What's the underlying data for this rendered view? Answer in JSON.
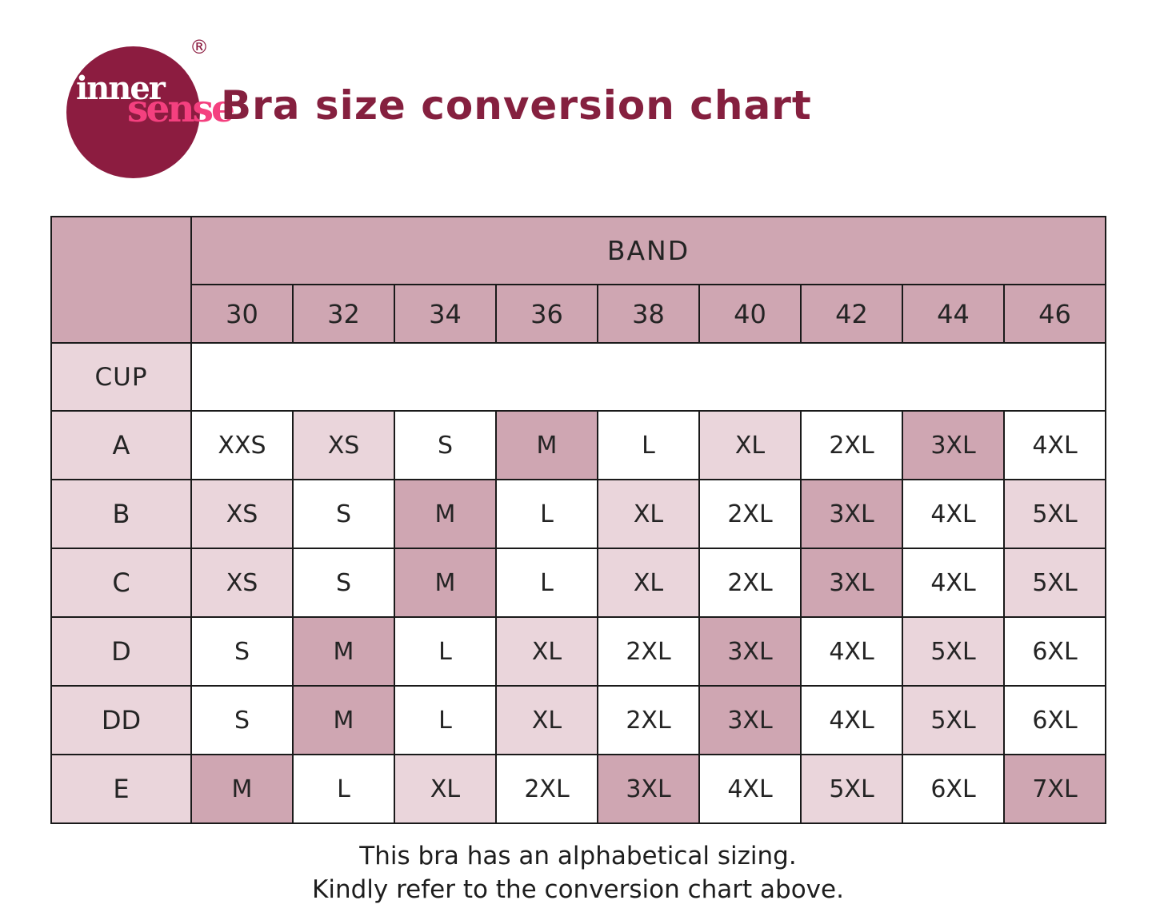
{
  "header": {
    "logo": {
      "word1": "inner",
      "word2": "sense",
      "registered_mark": "®"
    },
    "title": "Bra size conversion chart"
  },
  "chart_data": {
    "type": "table",
    "title": "Bra size conversion chart",
    "column_group_label": "BAND",
    "row_group_label": "CUP",
    "columns": [
      "30",
      "32",
      "34",
      "36",
      "38",
      "40",
      "42",
      "44",
      "46"
    ],
    "rows": [
      {
        "cup": "A",
        "cells": [
          {
            "v": "XXS",
            "s": "white"
          },
          {
            "v": "XS",
            "s": "light"
          },
          {
            "v": "S",
            "s": "white"
          },
          {
            "v": "M",
            "s": "dark"
          },
          {
            "v": "L",
            "s": "white"
          },
          {
            "v": "XL",
            "s": "light"
          },
          {
            "v": "2XL",
            "s": "white"
          },
          {
            "v": "3XL",
            "s": "dark"
          },
          {
            "v": "4XL",
            "s": "white"
          }
        ]
      },
      {
        "cup": "B",
        "cells": [
          {
            "v": "XS",
            "s": "light"
          },
          {
            "v": "S",
            "s": "white"
          },
          {
            "v": "M",
            "s": "dark"
          },
          {
            "v": "L",
            "s": "white"
          },
          {
            "v": "XL",
            "s": "light"
          },
          {
            "v": "2XL",
            "s": "white"
          },
          {
            "v": "3XL",
            "s": "dark"
          },
          {
            "v": "4XL",
            "s": "white"
          },
          {
            "v": "5XL",
            "s": "light"
          }
        ]
      },
      {
        "cup": "C",
        "cells": [
          {
            "v": "XS",
            "s": "light"
          },
          {
            "v": "S",
            "s": "white"
          },
          {
            "v": "M",
            "s": "dark"
          },
          {
            "v": "L",
            "s": "white"
          },
          {
            "v": "XL",
            "s": "light"
          },
          {
            "v": "2XL",
            "s": "white"
          },
          {
            "v": "3XL",
            "s": "dark"
          },
          {
            "v": "4XL",
            "s": "white"
          },
          {
            "v": "5XL",
            "s": "light"
          }
        ]
      },
      {
        "cup": "D",
        "cells": [
          {
            "v": "S",
            "s": "white"
          },
          {
            "v": "M",
            "s": "dark"
          },
          {
            "v": "L",
            "s": "white"
          },
          {
            "v": "XL",
            "s": "light"
          },
          {
            "v": "2XL",
            "s": "white"
          },
          {
            "v": "3XL",
            "s": "dark"
          },
          {
            "v": "4XL",
            "s": "white"
          },
          {
            "v": "5XL",
            "s": "light"
          },
          {
            "v": "6XL",
            "s": "white"
          }
        ]
      },
      {
        "cup": "DD",
        "cells": [
          {
            "v": "S",
            "s": "white"
          },
          {
            "v": "M",
            "s": "dark"
          },
          {
            "v": "L",
            "s": "white"
          },
          {
            "v": "XL",
            "s": "light"
          },
          {
            "v": "2XL",
            "s": "white"
          },
          {
            "v": "3XL",
            "s": "dark"
          },
          {
            "v": "4XL",
            "s": "white"
          },
          {
            "v": "5XL",
            "s": "light"
          },
          {
            "v": "6XL",
            "s": "white"
          }
        ]
      },
      {
        "cup": "E",
        "cells": [
          {
            "v": "M",
            "s": "dark"
          },
          {
            "v": "L",
            "s": "white"
          },
          {
            "v": "XL",
            "s": "light"
          },
          {
            "v": "2XL",
            "s": "white"
          },
          {
            "v": "3XL",
            "s": "dark"
          },
          {
            "v": "4XL",
            "s": "white"
          },
          {
            "v": "5XL",
            "s": "light"
          },
          {
            "v": "6XL",
            "s": "white"
          },
          {
            "v": "7XL",
            "s": "dark"
          }
        ]
      }
    ],
    "layout_hints": {
      "shade_legend": "dark = mauve highlight, light = pale pink, white = plain",
      "grid": "on"
    }
  },
  "footer": {
    "line1": "This bra has an alphabetical sizing.",
    "line2": "Kindly refer to the conversion chart above."
  },
  "colors": {
    "mauve_highlight": "#cfa6b2",
    "light_pink": "#ead5db",
    "white": "#ffffff",
    "title_maroon": "#85203f",
    "logo_circle": "#8c1c40",
    "logo_pink": "#f4407f",
    "grid_border": "#1a1a1a",
    "text": "#242424"
  }
}
